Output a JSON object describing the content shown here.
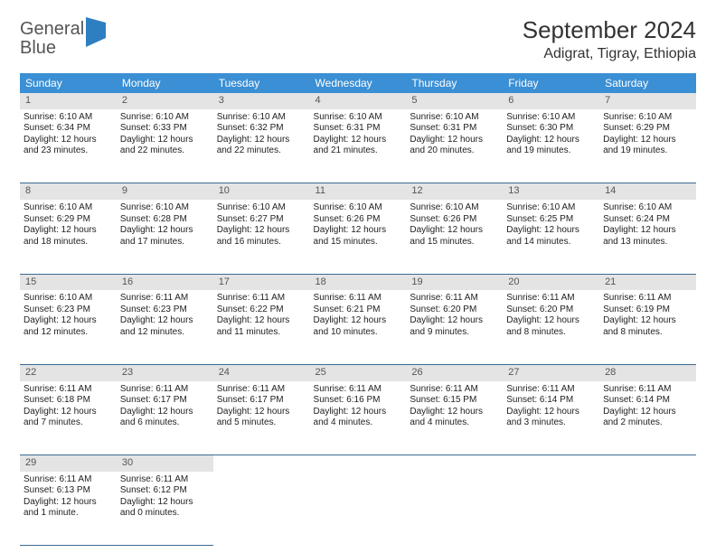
{
  "logo": {
    "text1": "General",
    "text2": "Blue"
  },
  "title": "September 2024",
  "location": "Adigrat, Tigray, Ethiopia",
  "colors": {
    "header_bg": "#3b8fd4",
    "border": "#3b6b94",
    "daynum_bg": "#e4e4e4",
    "logo_blue": "#2d7fc2"
  },
  "weekdays": [
    "Sunday",
    "Monday",
    "Tuesday",
    "Wednesday",
    "Thursday",
    "Friday",
    "Saturday"
  ],
  "weeks": [
    [
      {
        "n": "1",
        "sr": "Sunrise: 6:10 AM",
        "ss": "Sunset: 6:34 PM",
        "d1": "Daylight: 12 hours",
        "d2": "and 23 minutes."
      },
      {
        "n": "2",
        "sr": "Sunrise: 6:10 AM",
        "ss": "Sunset: 6:33 PM",
        "d1": "Daylight: 12 hours",
        "d2": "and 22 minutes."
      },
      {
        "n": "3",
        "sr": "Sunrise: 6:10 AM",
        "ss": "Sunset: 6:32 PM",
        "d1": "Daylight: 12 hours",
        "d2": "and 22 minutes."
      },
      {
        "n": "4",
        "sr": "Sunrise: 6:10 AM",
        "ss": "Sunset: 6:31 PM",
        "d1": "Daylight: 12 hours",
        "d2": "and 21 minutes."
      },
      {
        "n": "5",
        "sr": "Sunrise: 6:10 AM",
        "ss": "Sunset: 6:31 PM",
        "d1": "Daylight: 12 hours",
        "d2": "and 20 minutes."
      },
      {
        "n": "6",
        "sr": "Sunrise: 6:10 AM",
        "ss": "Sunset: 6:30 PM",
        "d1": "Daylight: 12 hours",
        "d2": "and 19 minutes."
      },
      {
        "n": "7",
        "sr": "Sunrise: 6:10 AM",
        "ss": "Sunset: 6:29 PM",
        "d1": "Daylight: 12 hours",
        "d2": "and 19 minutes."
      }
    ],
    [
      {
        "n": "8",
        "sr": "Sunrise: 6:10 AM",
        "ss": "Sunset: 6:29 PM",
        "d1": "Daylight: 12 hours",
        "d2": "and 18 minutes."
      },
      {
        "n": "9",
        "sr": "Sunrise: 6:10 AM",
        "ss": "Sunset: 6:28 PM",
        "d1": "Daylight: 12 hours",
        "d2": "and 17 minutes."
      },
      {
        "n": "10",
        "sr": "Sunrise: 6:10 AM",
        "ss": "Sunset: 6:27 PM",
        "d1": "Daylight: 12 hours",
        "d2": "and 16 minutes."
      },
      {
        "n": "11",
        "sr": "Sunrise: 6:10 AM",
        "ss": "Sunset: 6:26 PM",
        "d1": "Daylight: 12 hours",
        "d2": "and 15 minutes."
      },
      {
        "n": "12",
        "sr": "Sunrise: 6:10 AM",
        "ss": "Sunset: 6:26 PM",
        "d1": "Daylight: 12 hours",
        "d2": "and 15 minutes."
      },
      {
        "n": "13",
        "sr": "Sunrise: 6:10 AM",
        "ss": "Sunset: 6:25 PM",
        "d1": "Daylight: 12 hours",
        "d2": "and 14 minutes."
      },
      {
        "n": "14",
        "sr": "Sunrise: 6:10 AM",
        "ss": "Sunset: 6:24 PM",
        "d1": "Daylight: 12 hours",
        "d2": "and 13 minutes."
      }
    ],
    [
      {
        "n": "15",
        "sr": "Sunrise: 6:10 AM",
        "ss": "Sunset: 6:23 PM",
        "d1": "Daylight: 12 hours",
        "d2": "and 12 minutes."
      },
      {
        "n": "16",
        "sr": "Sunrise: 6:11 AM",
        "ss": "Sunset: 6:23 PM",
        "d1": "Daylight: 12 hours",
        "d2": "and 12 minutes."
      },
      {
        "n": "17",
        "sr": "Sunrise: 6:11 AM",
        "ss": "Sunset: 6:22 PM",
        "d1": "Daylight: 12 hours",
        "d2": "and 11 minutes."
      },
      {
        "n": "18",
        "sr": "Sunrise: 6:11 AM",
        "ss": "Sunset: 6:21 PM",
        "d1": "Daylight: 12 hours",
        "d2": "and 10 minutes."
      },
      {
        "n": "19",
        "sr": "Sunrise: 6:11 AM",
        "ss": "Sunset: 6:20 PM",
        "d1": "Daylight: 12 hours",
        "d2": "and 9 minutes."
      },
      {
        "n": "20",
        "sr": "Sunrise: 6:11 AM",
        "ss": "Sunset: 6:20 PM",
        "d1": "Daylight: 12 hours",
        "d2": "and 8 minutes."
      },
      {
        "n": "21",
        "sr": "Sunrise: 6:11 AM",
        "ss": "Sunset: 6:19 PM",
        "d1": "Daylight: 12 hours",
        "d2": "and 8 minutes."
      }
    ],
    [
      {
        "n": "22",
        "sr": "Sunrise: 6:11 AM",
        "ss": "Sunset: 6:18 PM",
        "d1": "Daylight: 12 hours",
        "d2": "and 7 minutes."
      },
      {
        "n": "23",
        "sr": "Sunrise: 6:11 AM",
        "ss": "Sunset: 6:17 PM",
        "d1": "Daylight: 12 hours",
        "d2": "and 6 minutes."
      },
      {
        "n": "24",
        "sr": "Sunrise: 6:11 AM",
        "ss": "Sunset: 6:17 PM",
        "d1": "Daylight: 12 hours",
        "d2": "and 5 minutes."
      },
      {
        "n": "25",
        "sr": "Sunrise: 6:11 AM",
        "ss": "Sunset: 6:16 PM",
        "d1": "Daylight: 12 hours",
        "d2": "and 4 minutes."
      },
      {
        "n": "26",
        "sr": "Sunrise: 6:11 AM",
        "ss": "Sunset: 6:15 PM",
        "d1": "Daylight: 12 hours",
        "d2": "and 4 minutes."
      },
      {
        "n": "27",
        "sr": "Sunrise: 6:11 AM",
        "ss": "Sunset: 6:14 PM",
        "d1": "Daylight: 12 hours",
        "d2": "and 3 minutes."
      },
      {
        "n": "28",
        "sr": "Sunrise: 6:11 AM",
        "ss": "Sunset: 6:14 PM",
        "d1": "Daylight: 12 hours",
        "d2": "and 2 minutes."
      }
    ],
    [
      {
        "n": "29",
        "sr": "Sunrise: 6:11 AM",
        "ss": "Sunset: 6:13 PM",
        "d1": "Daylight: 12 hours",
        "d2": "and 1 minute."
      },
      {
        "n": "30",
        "sr": "Sunrise: 6:11 AM",
        "ss": "Sunset: 6:12 PM",
        "d1": "Daylight: 12 hours",
        "d2": "and 0 minutes."
      },
      null,
      null,
      null,
      null,
      null
    ]
  ]
}
